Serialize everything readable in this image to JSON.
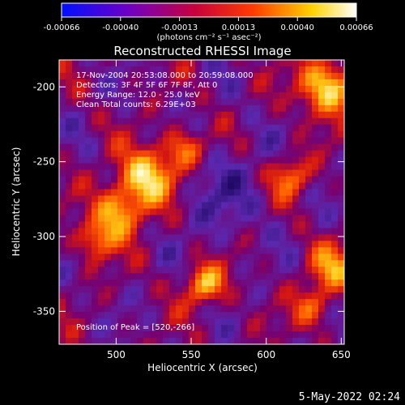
{
  "chart_data": {
    "type": "heatmap",
    "title": "Reconstructed RHESSI Image",
    "xlabel": "Heliocentric X (arcsec)",
    "ylabel": "Heliocentric Y (arcsec)",
    "xlim": [
      462,
      652
    ],
    "ylim": [
      -372,
      -182
    ],
    "x_ticks": [
      500,
      550,
      600,
      650
    ],
    "y_ticks": [
      -200,
      -250,
      -300,
      -350
    ],
    "colorbar": {
      "ticks": [
        "-0.00066",
        "-0.00040",
        "-0.00013",
        "0.00013",
        "0.00040",
        "0.00066"
      ],
      "range": [
        -0.00066,
        0.00066
      ],
      "units_label": "(photons cm⁻² s⁻¹ asec⁻²)"
    },
    "annotations": {
      "time": "17-Nov-2004 20:53:08.000 to 20:59:08.000",
      "detectors": "Detectors: 3F 4F 5F 6F 7F 8F, Att 0",
      "energy": "Energy Range: 12.0 - 25.0 keV",
      "clean": "Clean     Total counts: 6.29E+03",
      "peak": "Position of Peak = [520,-266]"
    },
    "peak": [
      520,
      -266
    ],
    "grid": false
  },
  "footer": {
    "date": "5-May-2022 02:24"
  }
}
